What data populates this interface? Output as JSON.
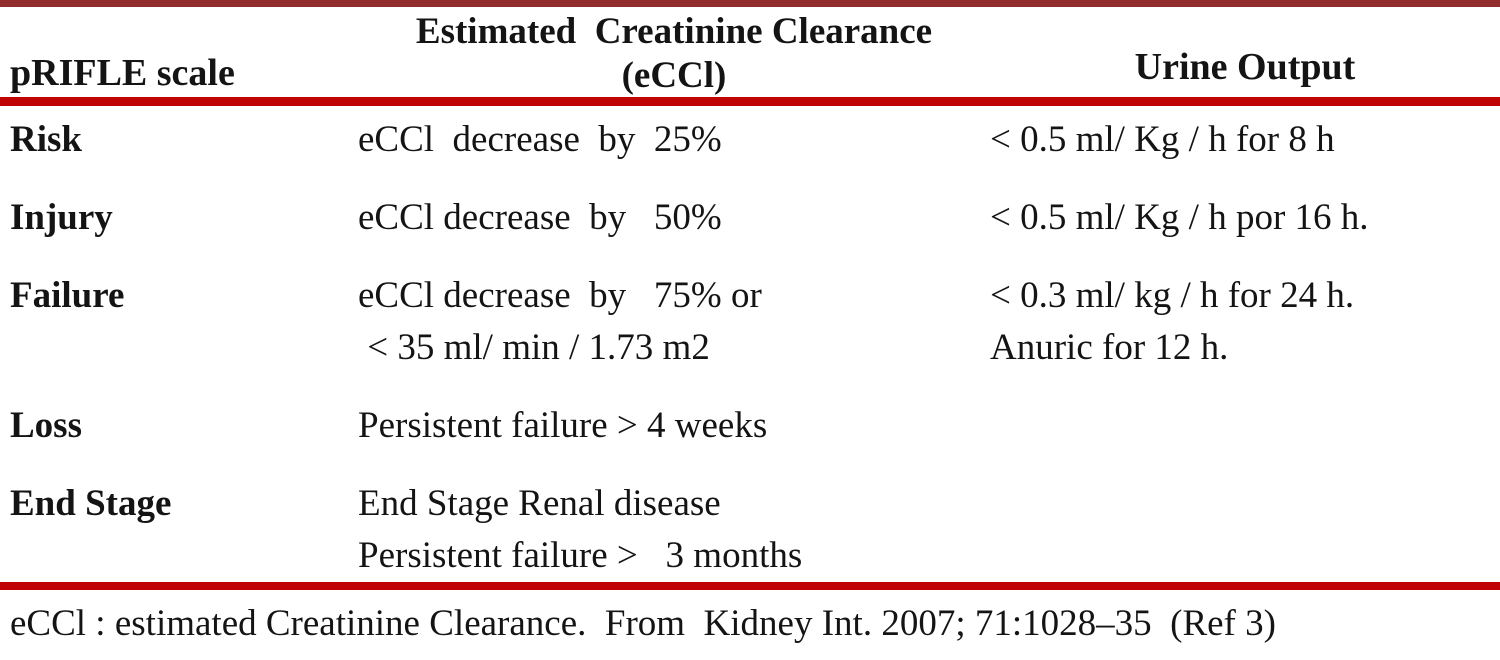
{
  "colors": {
    "top_rule": "#912d2d",
    "divider_rule": "#c00404",
    "text": "#141414",
    "background": "#ffffff"
  },
  "table": {
    "header": {
      "scale": "pRIFLE scale",
      "eccl_line1": "Estimated  Creatinine Clearance",
      "eccl_line2": "(eCCl)",
      "urine": "Urine Output"
    },
    "rows": [
      {
        "scale": "Risk",
        "eccl": [
          "eCCl  decrease  by  25%"
        ],
        "urine": [
          "< 0.5 ml/ Kg / h for 8 h"
        ]
      },
      {
        "scale": "Injury",
        "eccl": [
          "eCCl decrease  by   50%"
        ],
        "urine": [
          "< 0.5 ml/ Kg / h por 16 h."
        ]
      },
      {
        "scale": "Failure",
        "eccl": [
          "eCCl decrease  by   75% or",
          " < 35 ml/ min / 1.73 m2"
        ],
        "urine": [
          "< 0.3 ml/ kg / h for 24 h.",
          "Anuric for 12 h."
        ]
      },
      {
        "scale": "Loss",
        "eccl": [
          "Persistent failure > 4 weeks"
        ],
        "urine": []
      },
      {
        "scale": "End Stage",
        "eccl": [
          "End Stage Renal disease",
          "Persistent failure >   3 months"
        ],
        "urine": []
      }
    ],
    "footnote": "eCCl : estimated Creatinine Clearance.  From  Kidney Int. 2007; 71:1028–35  (Ref 3)"
  }
}
